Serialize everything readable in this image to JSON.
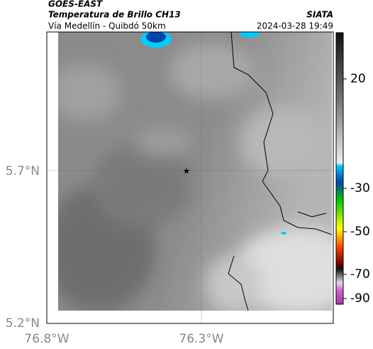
{
  "header": {
    "product": "GOES-EAST",
    "title": "Temperatura de Brillo CH13",
    "subtitle": "Vía Medellín - Quibdó 50km",
    "source": "SIATA",
    "datetime": "2024-03-28 19:49"
  },
  "map": {
    "lat_labels": [
      "5.7°N",
      "5.2°N"
    ],
    "lon_labels": [
      "76.8°W",
      "76.3°W"
    ]
  },
  "colorbar": {
    "ticks": [
      20,
      -30,
      -50,
      -70,
      -90
    ]
  }
}
